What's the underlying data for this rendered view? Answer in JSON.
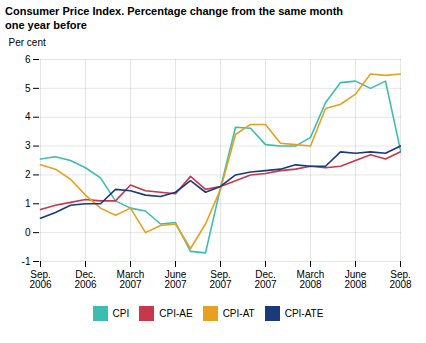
{
  "chart_data": {
    "type": "line",
    "title": "Consumer Price Index. Percentage change from the same month\none year before",
    "ylabel": "Per cent",
    "categories": [
      "Sep.\n2006",
      null,
      null,
      "Dec.\n2006",
      null,
      null,
      "March\n2007",
      null,
      null,
      "June\n2007",
      null,
      null,
      "Sep.\n2007",
      null,
      null,
      "Dec.\n2007",
      null,
      null,
      "March\n2008",
      null,
      null,
      "June\n2008",
      null,
      null,
      "Sep.\n2008"
    ],
    "series": [
      {
        "name": "CPI",
        "color": "#3dbdb1",
        "values": [
          2.55,
          2.63,
          2.5,
          2.25,
          1.9,
          1.1,
          0.85,
          0.75,
          0.3,
          0.35,
          -0.65,
          -0.7,
          1.55,
          3.65,
          3.62,
          3.05,
          3.0,
          3.0,
          3.3,
          4.5,
          5.2,
          5.25,
          5.0,
          5.25,
          2.85
        ]
      },
      {
        "name": "CPI-AE",
        "color": "#c8374a",
        "values": [
          0.8,
          0.95,
          1.05,
          1.15,
          1.1,
          1.1,
          1.65,
          1.45,
          1.4,
          1.35,
          1.95,
          1.5,
          1.6,
          1.8,
          2.0,
          2.05,
          2.15,
          2.2,
          2.3,
          2.25,
          2.3,
          2.5,
          2.7,
          2.55,
          2.8
        ]
      },
      {
        "name": "CPI-AT",
        "color": "#e8a020",
        "values": [
          2.35,
          2.2,
          1.85,
          1.3,
          0.85,
          0.6,
          0.85,
          0.0,
          0.25,
          0.3,
          -0.55,
          0.3,
          1.5,
          3.4,
          3.75,
          3.75,
          3.1,
          3.05,
          3.0,
          4.3,
          4.45,
          4.8,
          5.5,
          5.45,
          5.5
        ]
      },
      {
        "name": "CPI-ATE",
        "color": "#1a3a7c",
        "values": [
          0.5,
          0.7,
          0.95,
          1.0,
          1.0,
          1.5,
          1.45,
          1.3,
          1.25,
          1.4,
          1.8,
          1.4,
          1.6,
          2.0,
          2.1,
          2.15,
          2.2,
          2.35,
          2.3,
          2.3,
          2.8,
          2.75,
          2.8,
          2.75,
          3.0
        ]
      }
    ],
    "ylim": [
      -1,
      6
    ],
    "yticks": [
      -1,
      0,
      1,
      2,
      3,
      4,
      5,
      6
    ],
    "grid": true,
    "legend": "bottom"
  }
}
